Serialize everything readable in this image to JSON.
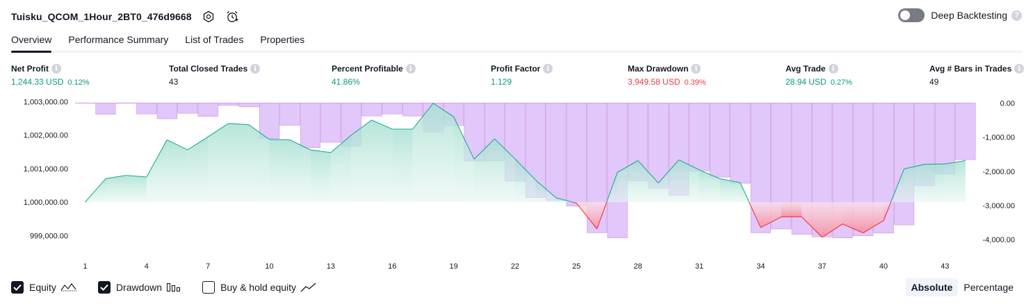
{
  "header": {
    "title": "Tuisku_QCOM_1Hour_2BT0_476d9668",
    "settings_icon": "gear-icon",
    "alert_icon": "alarm-clock-icon"
  },
  "deep_backtesting": {
    "label": "Deep Backtesting",
    "enabled": false,
    "help": "?"
  },
  "tabs": [
    {
      "label": "Overview",
      "active": true
    },
    {
      "label": "Performance Summary",
      "active": false
    },
    {
      "label": "List of Trades",
      "active": false
    },
    {
      "label": "Properties",
      "active": false
    }
  ],
  "metrics": {
    "info_glyph": "i",
    "net_profit": {
      "label": "Net Profit",
      "value": "1,244.33 USD",
      "pct": "0.12%"
    },
    "total_closed_trades": {
      "label": "Total Closed Trades",
      "value": "43"
    },
    "percent_profitable": {
      "label": "Percent Profitable",
      "value": "41.86%"
    },
    "profit_factor": {
      "label": "Profit Factor",
      "value": "1.129"
    },
    "max_drawdown": {
      "label": "Max Drawdown",
      "value": "3,949.58 USD",
      "pct": "0.39%"
    },
    "avg_trade": {
      "label": "Avg Trade",
      "value": "28.94 USD",
      "pct": "0.27%"
    },
    "avg_bars": {
      "label": "Avg # Bars in Trades",
      "value": "49"
    }
  },
  "chart_data": {
    "type": "area",
    "equity": {
      "name": "Equity",
      "baseline": 1000000,
      "x": [
        1,
        2,
        3,
        4,
        5,
        6,
        7,
        8,
        9,
        10,
        11,
        12,
        13,
        14,
        15,
        16,
        17,
        18,
        19,
        20,
        21,
        22,
        23,
        24,
        25,
        26,
        27,
        28,
        29,
        30,
        31,
        32,
        33,
        34,
        35,
        36,
        37,
        38,
        39,
        40,
        41,
        42,
        43,
        44
      ],
      "values": [
        1000000,
        1000700,
        1000800,
        1000750,
        1001860,
        1001560,
        1001950,
        1002350,
        1002310,
        1001870,
        1001860,
        1001560,
        1001480,
        1002000,
        1002450,
        1002180,
        1002180,
        1002950,
        1002550,
        1001280,
        1001890,
        1001290,
        1000660,
        1000130,
        999970,
        999200,
        1000890,
        1001240,
        1000570,
        1001260,
        1000960,
        1000700,
        1000580,
        999240,
        999560,
        999560,
        998950,
        999350,
        999080,
        999450,
        1000990,
        1001130,
        1001140,
        1001240
      ],
      "colors": {
        "line_up": "#22ab94",
        "line_down": "#f23645",
        "fill_up": "#cdeee6",
        "fill_down": "#f7a9b4"
      }
    },
    "drawdown": {
      "name": "Drawdown",
      "x": [
        1,
        2,
        3,
        4,
        5,
        6,
        7,
        8,
        9,
        10,
        11,
        12,
        13,
        14,
        15,
        16,
        17,
        18,
        19,
        20,
        21,
        22,
        23,
        24,
        25,
        26,
        27,
        28,
        29,
        30,
        31,
        32,
        33,
        34,
        35,
        36,
        37,
        38,
        39,
        40,
        41,
        42,
        43,
        44
      ],
      "values": [
        0,
        -330,
        0,
        -320,
        -460,
        -300,
        -390,
        -70,
        -110,
        -1040,
        -650,
        -1310,
        -1150,
        -1270,
        -380,
        -320,
        -380,
        -850,
        -660,
        -1700,
        -1690,
        -2290,
        -2770,
        -2860,
        -3020,
        -3800,
        -3950,
        -2280,
        -2500,
        -2700,
        -1990,
        -2170,
        -2350,
        -3800,
        -3690,
        -3850,
        -3920,
        -3950,
        -3890,
        -3810,
        -3570,
        -2420,
        -2080,
        -1660
      ],
      "color": "#ce93d8",
      "fill": "#e1c7fa"
    },
    "left_axis": {
      "ticks": [
        "1,003,000.00",
        "1,002,000.00",
        "1,001,000.00",
        "1,000,000.00",
        "999,000.00"
      ],
      "tick_values": [
        1003000,
        1002000,
        1001000,
        1000000,
        999000
      ],
      "ylim": [
        998700,
        1003050
      ]
    },
    "right_axis": {
      "ticks": [
        "0.00",
        "-1,000.00",
        "-2,000.00",
        "-3,000.00",
        "-4,000.00"
      ],
      "tick_values": [
        0,
        -1000,
        -2000,
        -3000,
        -4000
      ],
      "ylim": [
        -4200,
        70
      ]
    },
    "x_ticks": [
      "1",
      "4",
      "7",
      "10",
      "13",
      "16",
      "19",
      "22",
      "25",
      "28",
      "31",
      "34",
      "37",
      "40",
      "43"
    ],
    "x_tick_values": [
      1,
      4,
      7,
      10,
      13,
      16,
      19,
      22,
      25,
      28,
      31,
      34,
      37,
      40,
      43
    ]
  },
  "legend": [
    {
      "label": "Equity",
      "checked": true,
      "icon": "equity-line-icon"
    },
    {
      "label": "Drawdown",
      "checked": true,
      "icon": "drawdown-bars-icon"
    },
    {
      "label": "Buy & hold equity",
      "checked": false,
      "icon": "buy-hold-line-icon"
    }
  ],
  "mode": {
    "absolute": "Absolute",
    "percentage": "Percentage",
    "selected": "Absolute"
  }
}
